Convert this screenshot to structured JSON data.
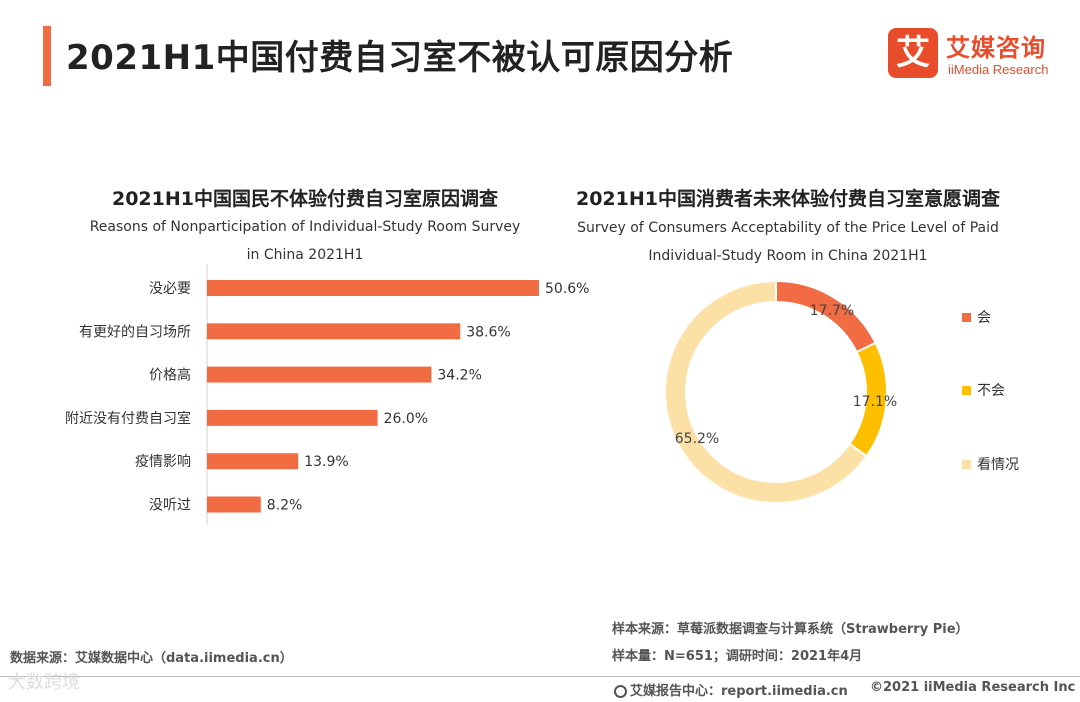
{
  "page": {
    "title": "2021H1中国付费自习室不被认可原因分析",
    "accent_color": "#f26c43"
  },
  "logo": {
    "mark": "艾",
    "cn": "艾媒咨询",
    "en": "iiMedia Research"
  },
  "chart_data": [
    {
      "type": "bar",
      "orientation": "horizontal",
      "title": "2021H1中国国民不体验付费自习室原因调查",
      "subtitle_line1": "Reasons of Nonparticipation of Individual-Study Room Survey",
      "subtitle_line2": "in China 2021H1",
      "categories": [
        "没必要",
        "有更好的自习场所",
        "价格高",
        "附近没有付费自习室",
        "疫情影响",
        "没听过"
      ],
      "values": [
        50.6,
        38.6,
        34.2,
        26.0,
        13.9,
        8.2
      ],
      "value_labels": [
        "50.6%",
        "38.6%",
        "34.2%",
        "26.0%",
        "13.9%",
        "8.2%"
      ],
      "unit": "%",
      "bar_color": "#f26c43",
      "xlim": [
        0,
        50.6
      ],
      "grid": false
    },
    {
      "type": "pie",
      "variant": "donut",
      "title": "2021H1中国消费者未来体验付费自习室意愿调查",
      "subtitle_line1": "Survey of Consumers Acceptability of the Price Level of Paid",
      "subtitle_line2": "Individual-Study Room in China 2021H1",
      "labels": [
        "会",
        "不会",
        "看情况"
      ],
      "values": [
        17.7,
        17.1,
        65.2
      ],
      "value_labels": [
        "17.7%",
        "17.1%",
        "65.2%"
      ],
      "colors": [
        "#f26c43",
        "#fdbf00",
        "#fde0a6"
      ],
      "legend_position": "right"
    }
  ],
  "footer": {
    "sample_source": "样本来源：草莓派数据调查与计算系统（Strawberry Pie）",
    "sample_size": "样本量：N=651；调研时间：2021年4月",
    "data_source": "数据来源：艾媒数据中心（data.iimedia.cn）",
    "report_center": "艾媒报告中心：report.iimedia.cn",
    "copyright": "©2021  iiMedia Research  Inc",
    "watermark": "大数跨境"
  }
}
